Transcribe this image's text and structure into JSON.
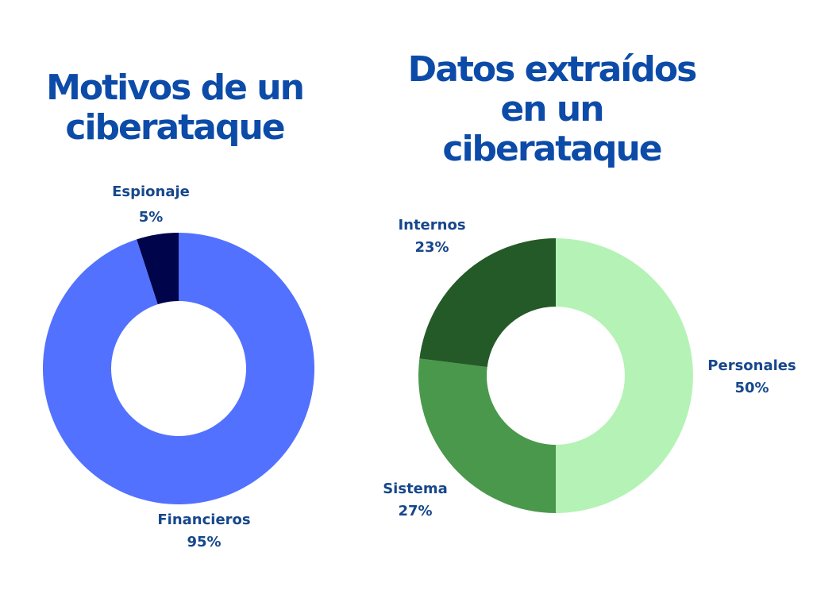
{
  "chart_data": [
    {
      "type": "pie",
      "donut": true,
      "title": "Motivos de un ciberataque",
      "slices": [
        {
          "label": "Financieros",
          "value": 95,
          "display": "95%",
          "color": "#5271ff"
        },
        {
          "label": "Espionaje",
          "value": 5,
          "display": "5%",
          "color": "#00044a"
        }
      ]
    },
    {
      "type": "pie",
      "donut": true,
      "title": "Datos extraídos en un ciberataque",
      "slices": [
        {
          "label": "Personales",
          "value": 50,
          "display": "50%",
          "color": "#b5f2b5"
        },
        {
          "label": "Sistema",
          "value": 27,
          "display": "27%",
          "color": "#4a984c"
        },
        {
          "label": "Internos",
          "value": 23,
          "display": "23%",
          "color": "#245a27"
        }
      ]
    }
  ]
}
